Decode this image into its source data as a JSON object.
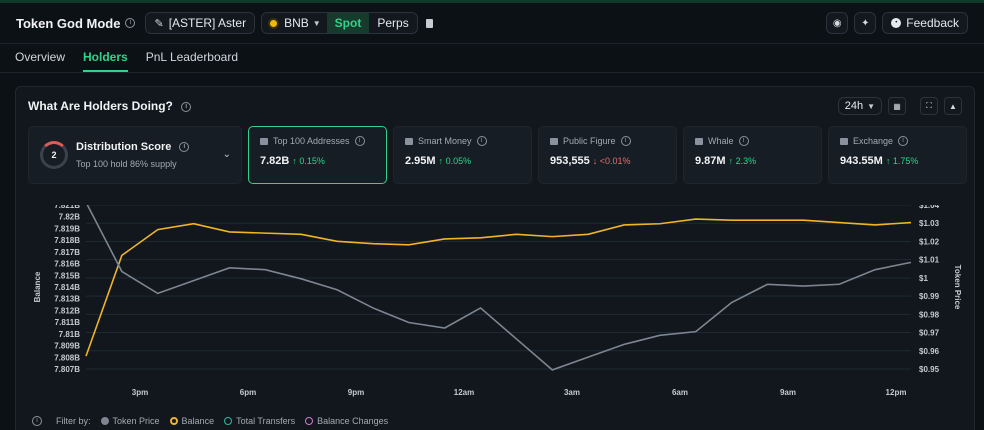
{
  "header": {
    "title": "Token God Mode",
    "token_label": "[ASTER] Aster",
    "chain": "BNB",
    "segments": [
      "Spot",
      "Perps"
    ],
    "feedback_label": "Feedback"
  },
  "tabs": [
    "Overview",
    "Holders",
    "PnL Leaderboard"
  ],
  "panel": {
    "title": "What Are Holders Doing?",
    "period": "24h"
  },
  "distribution": {
    "score": "2",
    "title": "Distribution Score",
    "subtitle": "Top 100 hold 86% supply"
  },
  "cards": [
    {
      "label": "Top 100 Addresses",
      "value": "7.82B",
      "change": "↑ 0.15%"
    },
    {
      "label": "Smart Money",
      "value": "2.95M",
      "change": "↑ 0.05%"
    },
    {
      "label": "Public Figure",
      "value": "953,555",
      "change": "↓ <0.01%"
    },
    {
      "label": "Whale",
      "value": "9.87M",
      "change": "↑ 2.3%"
    },
    {
      "label": "Exchange",
      "value": "943.55M",
      "change": "↑ 1.75%"
    }
  ],
  "colors": {
    "accent": "#2fd48a",
    "balance_line": "#f0b429",
    "price_line": "#7c8591",
    "down": "#f06a6a"
  },
  "chart_data": {
    "type": "line",
    "left_axis_label": "Balance",
    "right_axis_label": "Token Price",
    "left_ticks": [
      "7.821B",
      "7.82B",
      "7.819B",
      "7.818B",
      "7.817B",
      "7.816B",
      "7.815B",
      "7.814B",
      "7.813B",
      "7.812B",
      "7.811B",
      "7.81B",
      "7.809B",
      "7.808B",
      "7.807B"
    ],
    "right_ticks": [
      "$1.04",
      "$1.03",
      "$1.02",
      "$1.01",
      "$1",
      "$0.99",
      "$0.98",
      "$0.97",
      "$0.96",
      "$0.95"
    ],
    "x_ticks": [
      "3pm",
      "6pm",
      "9pm",
      "12am",
      "3am",
      "6am",
      "9am",
      "12pm"
    ],
    "ylim_left": [
      7.807,
      7.821
    ],
    "ylim_right": [
      0.95,
      1.04
    ],
    "series": [
      {
        "name": "Balance",
        "values": [
          7.8081,
          7.8167,
          7.8189,
          7.8194,
          7.8187,
          7.8186,
          7.8185,
          7.8179,
          7.8177,
          7.8176,
          7.8181,
          7.8182,
          7.8185,
          7.8183,
          7.8185,
          7.8193,
          7.8194,
          7.8198,
          7.8197,
          7.8197,
          7.8197,
          7.8195,
          7.8193,
          7.8195
        ]
      },
      {
        "name": "Token Price",
        "values": [
          1.0415,
          1.0035,
          0.9915,
          0.9985,
          1.0055,
          1.0045,
          0.9995,
          0.9935,
          0.9835,
          0.9755,
          0.9725,
          0.9835,
          0.9665,
          0.9495,
          0.9565,
          0.9635,
          0.9685,
          0.9705,
          0.9865,
          0.9965,
          0.9955,
          0.9965,
          1.0045,
          1.0085
        ]
      }
    ]
  },
  "legend": {
    "filter_label": "Filter by:",
    "items": [
      "Token Price",
      "Balance",
      "Total Transfers",
      "Balance Changes"
    ]
  }
}
